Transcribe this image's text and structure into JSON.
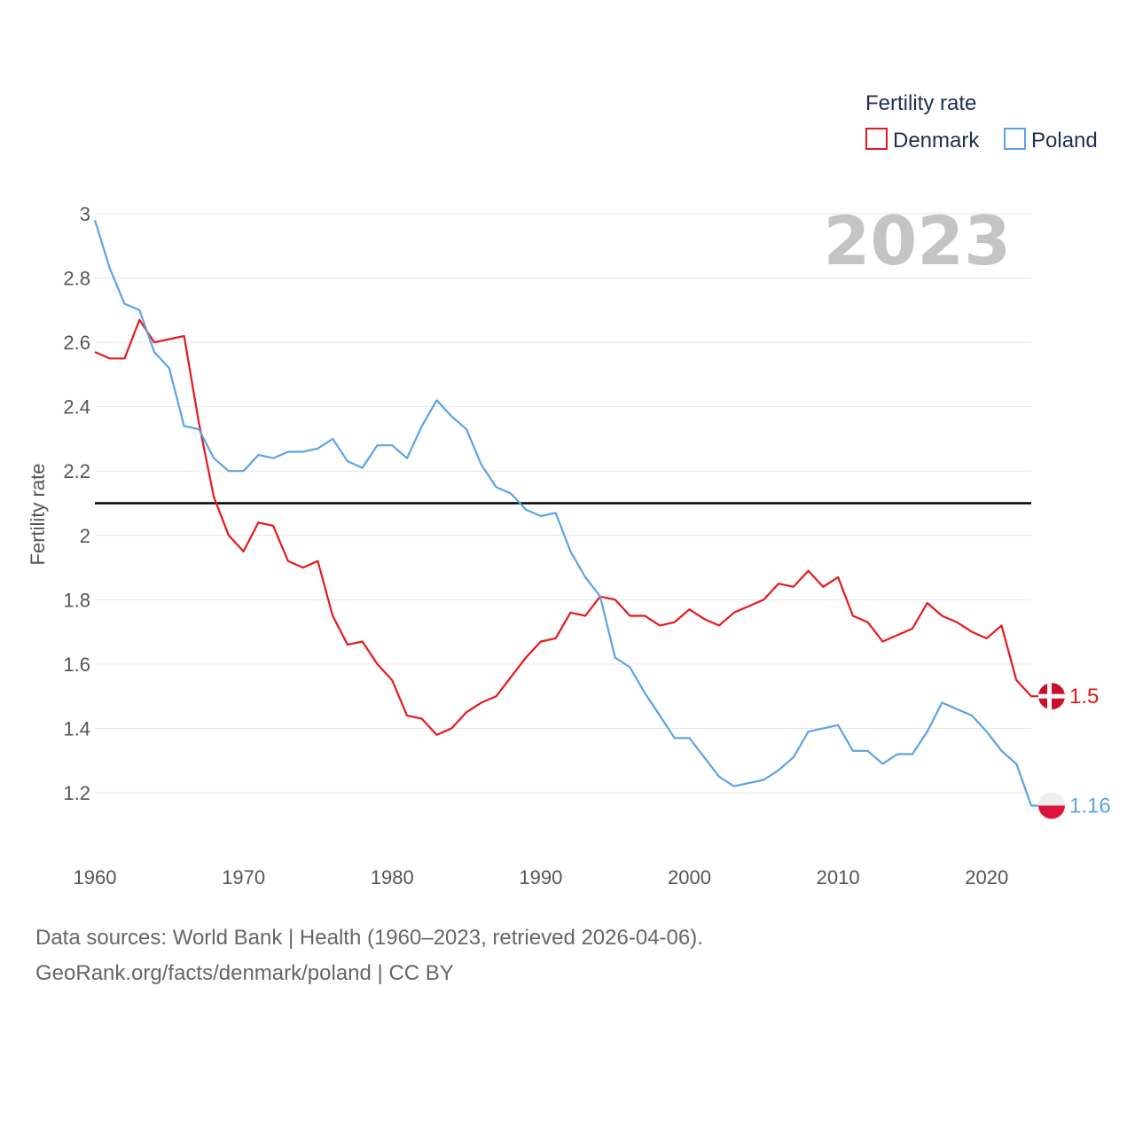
{
  "chart_data": {
    "type": "line",
    "title": "Fertility rate",
    "year_watermark": "2023",
    "ylabel": "Fertility rate",
    "xlabel": "",
    "xlim": [
      1960,
      2023
    ],
    "ylim": [
      1.1,
      3.0
    ],
    "x_ticks": [
      1960,
      1970,
      1980,
      1990,
      2000,
      2010,
      2020
    ],
    "y_ticks": [
      1.2,
      1.4,
      1.6,
      1.8,
      2,
      2.2,
      2.4,
      2.6,
      2.8,
      3
    ],
    "reference_line": 2.1,
    "series": [
      {
        "name": "Denmark",
        "color": "#e8171c",
        "end_label": "1.5",
        "x": [
          1960,
          1961,
          1962,
          1963,
          1964,
          1965,
          1966,
          1967,
          1968,
          1969,
          1970,
          1971,
          1972,
          1973,
          1974,
          1975,
          1976,
          1977,
          1978,
          1979,
          1980,
          1981,
          1982,
          1983,
          1984,
          1985,
          1986,
          1987,
          1988,
          1989,
          1990,
          1991,
          1992,
          1993,
          1994,
          1995,
          1996,
          1997,
          1998,
          1999,
          2000,
          2001,
          2002,
          2003,
          2004,
          2005,
          2006,
          2007,
          2008,
          2009,
          2010,
          2011,
          2012,
          2013,
          2014,
          2015,
          2016,
          2017,
          2018,
          2019,
          2020,
          2021,
          2022,
          2023
        ],
        "values": [
          2.57,
          2.55,
          2.55,
          2.67,
          2.6,
          2.61,
          2.62,
          2.35,
          2.12,
          2.0,
          1.95,
          2.04,
          2.03,
          1.92,
          1.9,
          1.92,
          1.75,
          1.66,
          1.67,
          1.6,
          1.55,
          1.44,
          1.43,
          1.38,
          1.4,
          1.45,
          1.48,
          1.5,
          1.56,
          1.62,
          1.67,
          1.68,
          1.76,
          1.75,
          1.81,
          1.8,
          1.75,
          1.75,
          1.72,
          1.73,
          1.77,
          1.74,
          1.72,
          1.76,
          1.78,
          1.8,
          1.85,
          1.84,
          1.89,
          1.84,
          1.87,
          1.75,
          1.73,
          1.67,
          1.69,
          1.71,
          1.79,
          1.75,
          1.73,
          1.7,
          1.68,
          1.72,
          1.55,
          1.5
        ]
      },
      {
        "name": "Poland",
        "color": "#5ba3e6",
        "end_label": "1.16",
        "x": [
          1960,
          1961,
          1962,
          1963,
          1964,
          1965,
          1966,
          1967,
          1968,
          1969,
          1970,
          1971,
          1972,
          1973,
          1974,
          1975,
          1976,
          1977,
          1978,
          1979,
          1980,
          1981,
          1982,
          1983,
          1984,
          1985,
          1986,
          1987,
          1988,
          1989,
          1990,
          1991,
          1992,
          1993,
          1994,
          1995,
          1996,
          1997,
          1998,
          1999,
          2000,
          2001,
          2002,
          2003,
          2004,
          2005,
          2006,
          2007,
          2008,
          2009,
          2010,
          2011,
          2012,
          2013,
          2014,
          2015,
          2016,
          2017,
          2018,
          2019,
          2020,
          2021,
          2022,
          2023
        ],
        "values": [
          2.98,
          2.83,
          2.72,
          2.7,
          2.57,
          2.52,
          2.34,
          2.33,
          2.24,
          2.2,
          2.2,
          2.25,
          2.24,
          2.26,
          2.26,
          2.27,
          2.3,
          2.23,
          2.21,
          2.28,
          2.28,
          2.24,
          2.34,
          2.42,
          2.37,
          2.33,
          2.22,
          2.15,
          2.13,
          2.08,
          2.06,
          2.07,
          1.95,
          1.87,
          1.81,
          1.62,
          1.59,
          1.51,
          1.44,
          1.37,
          1.37,
          1.31,
          1.25,
          1.22,
          1.23,
          1.24,
          1.27,
          1.31,
          1.39,
          1.4,
          1.41,
          1.33,
          1.33,
          1.29,
          1.32,
          1.32,
          1.39,
          1.48,
          1.46,
          1.44,
          1.39,
          1.33,
          1.29,
          1.16
        ]
      }
    ]
  },
  "source": {
    "line1": "Data sources: World Bank | Health (1960–2023, retrieved 2026-04-06).",
    "line2": "GeoRank.org/facts/denmark/poland | CC BY"
  }
}
